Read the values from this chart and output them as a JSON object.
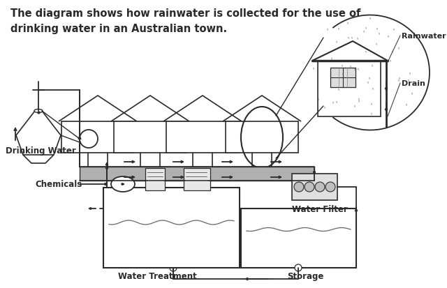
{
  "title": "The diagram shows how rainwater is collected for the use of\ndrinking water in an Australian town.",
  "title_fontsize": 10.5,
  "bg_color": "#ffffff",
  "line_color": "#2a2a2a",
  "labels": {
    "rainwater": "Rainwater",
    "drain": "Drain",
    "drinking_water": "Drinking Water",
    "chemicals": "Chemicals",
    "water_filter": "Water Filter",
    "water_treatment": "Water Treatment",
    "storage": "Storage"
  },
  "figsize": [
    6.4,
    4.14
  ],
  "dpi": 100
}
